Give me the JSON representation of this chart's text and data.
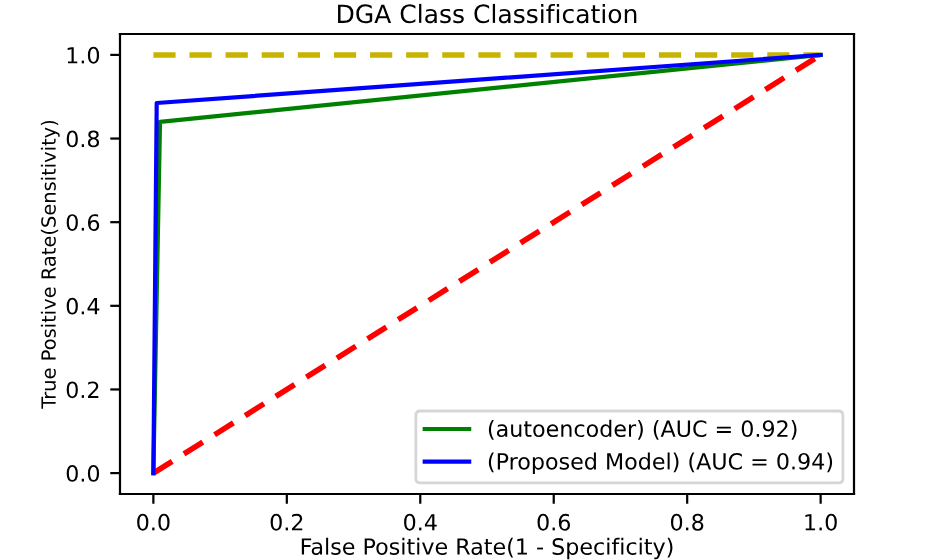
{
  "chart_data": {
    "type": "line",
    "title": "DGA Class Classification",
    "xlabel": "False Positive Rate(1 - Specificity)",
    "ylabel": "True Positive Rate(Sensitivity)",
    "xlim": [
      -0.05,
      1.05
    ],
    "ylim": [
      -0.05,
      1.05
    ],
    "xticks": [
      {
        "value": 0,
        "label": "0.0"
      },
      0.2,
      0.4,
      0.6,
      0.8,
      {
        "value": 1,
        "label": "1.0"
      }
    ],
    "yticks": [
      {
        "value": 0,
        "label": "0.0"
      },
      0.2,
      0.4,
      0.6,
      0.8,
      {
        "value": 1,
        "label": "1.0"
      }
    ],
    "grid": false,
    "legend": "bottom right",
    "marker": "none",
    "series": [
      {
        "x": [
          0,
          1
        ],
        "values": [
          1,
          1
        ],
        "color": "#c8b400",
        "line_style": "dashed"
      },
      {
        "x": [
          0,
          1
        ],
        "values": [
          0,
          1
        ],
        "color": "#ff0000",
        "line_style": "dashed"
      },
      {
        "name": "(autoencoder) (AUC = 0.92)",
        "x": [
          0,
          0.01,
          1
        ],
        "values": [
          0,
          0.84,
          1
        ],
        "color": "#008000",
        "line_style": "solid"
      },
      {
        "name": "(Proposed Model) (AUC = 0.94)",
        "x": [
          0,
          0.005,
          1
        ],
        "values": [
          0,
          0.885,
          1
        ],
        "color": "#0000ff",
        "line_style": "solid"
      }
    ]
  }
}
